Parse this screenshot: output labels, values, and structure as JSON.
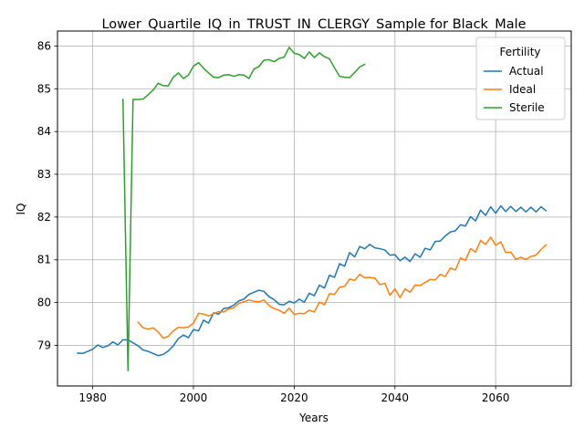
{
  "chart_data": {
    "type": "line",
    "title": "Lower_Quartile_IQ_in_TRUST_IN_CLERGY_Sample for Black_Male",
    "xlabel": "Years",
    "ylabel": "IQ",
    "xlim": [
      1973,
      2075
    ],
    "ylim": [
      78.05,
      86.35
    ],
    "xticks": [
      1980,
      2000,
      2020,
      2040,
      2060
    ],
    "yticks": [
      79,
      80,
      81,
      82,
      83,
      84,
      85,
      86
    ],
    "grid": true,
    "legend": {
      "title": "Fertility",
      "placement": "top-right"
    },
    "series": [
      {
        "name": "Actual",
        "color": "#1f77b4",
        "x": [
          1977,
          1978,
          1979,
          1980,
          1981,
          1982,
          1983,
          1984,
          1985,
          1986,
          1987,
          1988,
          1989,
          1990,
          1991,
          1992,
          1993,
          1994,
          1995,
          1996,
          1997,
          1998,
          1999,
          2000,
          2001,
          2002,
          2003,
          2004,
          2005,
          2006,
          2007,
          2008,
          2009,
          2010,
          2011,
          2012,
          2013,
          2014,
          2015,
          2016,
          2017,
          2018,
          2019,
          2020,
          2021,
          2022,
          2023,
          2024,
          2025,
          2026,
          2027,
          2028,
          2029,
          2030,
          2031,
          2032,
          2033,
          2034,
          2035,
          2036,
          2037,
          2038,
          2039,
          2040,
          2041,
          2042,
          2043,
          2044,
          2045,
          2046,
          2047,
          2048,
          2049,
          2050,
          2051,
          2052,
          2053,
          2054,
          2055,
          2056,
          2057,
          2058,
          2059,
          2060,
          2061,
          2062,
          2063,
          2064,
          2065,
          2066,
          2067,
          2068,
          2069,
          2070
        ],
        "values": [
          78.82,
          78.81,
          78.86,
          78.91,
          79.01,
          78.95,
          78.99,
          79.08,
          79.01,
          79.13,
          79.13,
          79.06,
          78.99,
          78.89,
          78.86,
          78.81,
          78.76,
          78.79,
          78.87,
          78.99,
          79.16,
          79.24,
          79.18,
          79.37,
          79.34,
          79.59,
          79.52,
          79.76,
          79.73,
          79.86,
          79.88,
          79.94,
          80.04,
          80.08,
          80.19,
          80.24,
          80.29,
          80.26,
          80.14,
          80.07,
          79.96,
          79.95,
          80.03,
          79.99,
          80.08,
          80.01,
          80.22,
          80.16,
          80.41,
          80.34,
          80.64,
          80.59,
          80.91,
          80.85,
          81.17,
          81.07,
          81.31,
          81.26,
          81.36,
          81.28,
          81.26,
          81.23,
          81.11,
          81.12,
          80.98,
          81.06,
          80.96,
          81.14,
          81.06,
          81.27,
          81.23,
          81.43,
          81.44,
          81.56,
          81.65,
          81.68,
          81.82,
          81.79,
          82.01,
          81.91,
          82.16,
          82.04,
          82.24,
          82.09,
          82.26,
          82.13,
          82.25,
          82.13,
          82.23,
          82.12,
          82.23,
          82.12,
          82.24,
          82.15
        ]
      },
      {
        "name": "Ideal",
        "color": "#ff7f0e",
        "x": [
          1989,
          1990,
          1991,
          1992,
          1993,
          1994,
          1995,
          1996,
          1997,
          1998,
          1999,
          2000,
          2001,
          2002,
          2003,
          2004,
          2005,
          2006,
          2007,
          2008,
          2009,
          2010,
          2011,
          2012,
          2013,
          2014,
          2015,
          2016,
          2017,
          2018,
          2019,
          2020,
          2021,
          2022,
          2023,
          2024,
          2025,
          2026,
          2027,
          2028,
          2029,
          2030,
          2031,
          2032,
          2033,
          2034,
          2035,
          2036,
          2037,
          2038,
          2039,
          2040,
          2041,
          2042,
          2043,
          2044,
          2045,
          2046,
          2047,
          2048,
          2049,
          2050,
          2051,
          2052,
          2053,
          2054,
          2055,
          2056,
          2057,
          2058,
          2059,
          2060,
          2061,
          2062,
          2063,
          2064,
          2065,
          2066,
          2067,
          2068,
          2069,
          2070
        ],
        "values": [
          79.54,
          79.41,
          79.38,
          79.41,
          79.31,
          79.17,
          79.21,
          79.34,
          79.42,
          79.41,
          79.43,
          79.52,
          79.75,
          79.73,
          79.69,
          79.74,
          79.79,
          79.78,
          79.85,
          79.88,
          79.98,
          80.02,
          80.06,
          80.03,
          80.02,
          80.06,
          79.93,
          79.86,
          79.82,
          79.75,
          79.87,
          79.72,
          79.75,
          79.74,
          79.82,
          79.78,
          80.01,
          79.95,
          80.21,
          80.19,
          80.36,
          80.38,
          80.55,
          80.52,
          80.66,
          80.58,
          80.59,
          80.57,
          80.42,
          80.45,
          80.17,
          80.32,
          80.12,
          80.32,
          80.24,
          80.41,
          80.4,
          80.47,
          80.54,
          80.53,
          80.66,
          80.61,
          80.81,
          80.76,
          81.04,
          80.99,
          81.26,
          81.18,
          81.45,
          81.36,
          81.53,
          81.34,
          81.42,
          81.17,
          81.18,
          81.01,
          81.06,
          81.01,
          81.08,
          81.11,
          81.24,
          81.35
        ]
      },
      {
        "name": "Sterile",
        "color": "#2ca02c",
        "x": [
          1986,
          1987,
          1988,
          1989,
          1990,
          1991,
          1992,
          1993,
          1994,
          1995,
          1996,
          1997,
          1998,
          1999,
          2000,
          2001,
          2002,
          2003,
          2004,
          2005,
          2006,
          2007,
          2008,
          2009,
          2010,
          2011,
          2012,
          2013,
          2014,
          2015,
          2016,
          2017,
          2018,
          2019,
          2020,
          2021,
          2022,
          2023,
          2024,
          2025,
          2026,
          2027,
          2028,
          2029,
          2030,
          2031,
          2032,
          2033,
          2034
        ],
        "values": [
          84.75,
          78.41,
          84.75,
          84.75,
          84.76,
          84.86,
          84.97,
          85.13,
          85.07,
          85.07,
          85.27,
          85.37,
          85.24,
          85.32,
          85.53,
          85.61,
          85.48,
          85.37,
          85.27,
          85.26,
          85.32,
          85.33,
          85.29,
          85.33,
          85.32,
          85.24,
          85.46,
          85.52,
          85.67,
          85.68,
          85.63,
          85.71,
          85.74,
          85.97,
          85.83,
          85.8,
          85.71,
          85.86,
          85.73,
          85.84,
          85.75,
          85.7,
          85.49,
          85.29,
          85.27,
          85.26,
          85.38,
          85.51,
          85.57
        ]
      }
    ]
  }
}
